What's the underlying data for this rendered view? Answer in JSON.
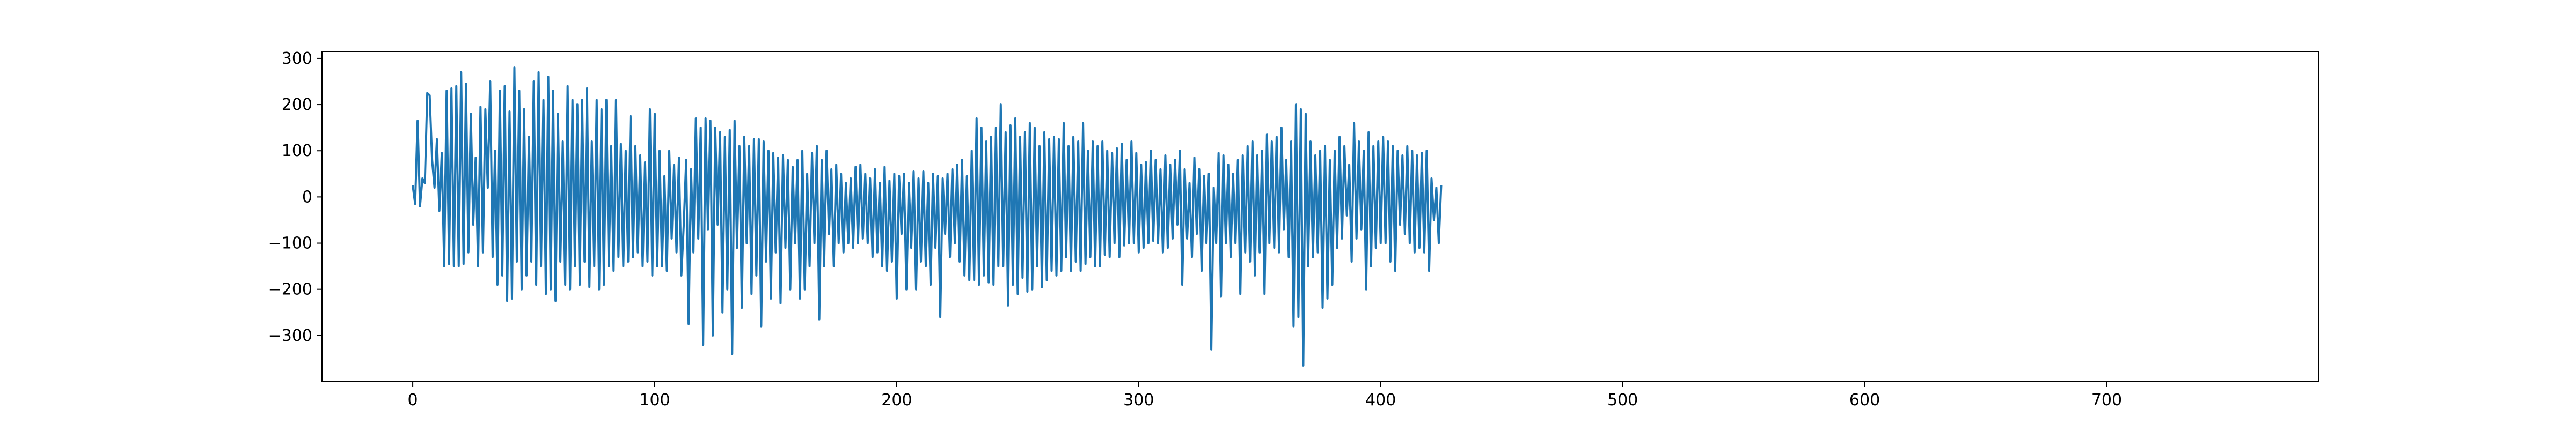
{
  "chart_data": {
    "type": "line",
    "title": "",
    "xlabel": "",
    "ylabel": "",
    "xlim": [
      -37.5,
      787.5
    ],
    "ylim": [
      -400,
      315
    ],
    "xticks": [
      0,
      100,
      200,
      300,
      400,
      500,
      600,
      700
    ],
    "yticks": [
      -300,
      -200,
      -100,
      0,
      100,
      200,
      300
    ],
    "xtick_labels": [
      "0",
      "100",
      "200",
      "300",
      "400",
      "500",
      "600",
      "700"
    ],
    "ytick_labels": [
      "−300",
      "−200",
      "−100",
      "0",
      "100",
      "200",
      "300"
    ],
    "grid": false,
    "legend": "none",
    "line_color": "#1f77b4",
    "series": [
      {
        "values": [
          25,
          -15,
          165,
          -20,
          40,
          30,
          225,
          220,
          80,
          20,
          125,
          -30,
          95,
          -150,
          230,
          -145,
          235,
          -150,
          240,
          -150,
          270,
          -145,
          245,
          -120,
          180,
          -60,
          85,
          -150,
          195,
          -120,
          190,
          20,
          250,
          -130,
          100,
          -190,
          230,
          -170,
          240,
          -225,
          185,
          -220,
          280,
          -140,
          230,
          -200,
          190,
          -170,
          130,
          -140,
          250,
          -190,
          270,
          -150,
          210,
          -210,
          260,
          -200,
          230,
          -225,
          180,
          -140,
          120,
          -190,
          240,
          -200,
          210,
          -150,
          200,
          -190,
          210,
          -140,
          235,
          -195,
          120,
          -150,
          210,
          -200,
          190,
          -190,
          210,
          -150,
          110,
          -160,
          210,
          -130,
          115,
          -150,
          100,
          -140,
          175,
          -130,
          110,
          -120,
          90,
          -150,
          75,
          -140,
          190,
          -170,
          180,
          -150,
          100,
          -150,
          45,
          -160,
          100,
          -90,
          70,
          -120,
          85,
          -170,
          -60,
          80,
          -275,
          60,
          -120,
          170,
          -90,
          150,
          -320,
          170,
          -70,
          165,
          -300,
          150,
          -60,
          140,
          -250,
          130,
          -200,
          145,
          -340,
          165,
          -110,
          110,
          -240,
          130,
          -100,
          110,
          -210,
          125,
          -170,
          125,
          -280,
          120,
          -140,
          100,
          -220,
          95,
          -120,
          85,
          -230,
          90,
          -110,
          80,
          -200,
          65,
          -100,
          80,
          -220,
          100,
          -200,
          50,
          -150,
          95,
          -100,
          110,
          -265,
          80,
          -150,
          100,
          -80,
          60,
          -150,
          70,
          -100,
          50,
          -120,
          30,
          -100,
          40,
          -110,
          65,
          -100,
          70,
          -90,
          50,
          -100,
          40,
          -130,
          60,
          -120,
          30,
          -150,
          65,
          -160,
          35,
          -140,
          50,
          -220,
          45,
          -80,
          50,
          -200,
          30,
          -110,
          55,
          -200,
          40,
          -140,
          55,
          -150,
          30,
          -190,
          50,
          -110,
          45,
          -260,
          40,
          -80,
          50,
          -130,
          60,
          -100,
          70,
          -140,
          80,
          -170,
          45,
          -180,
          100,
          -180,
          170,
          -190,
          150,
          -170,
          120,
          -185,
          130,
          -190,
          150,
          -150,
          200,
          -150,
          140,
          -235,
          155,
          -190,
          170,
          -210,
          130,
          -175,
          140,
          -205,
          160,
          -200,
          150,
          -150,
          110,
          -195,
          140,
          -180,
          125,
          -160,
          130,
          -170,
          125,
          -160,
          160,
          -130,
          110,
          -160,
          130,
          -140,
          120,
          -160,
          160,
          -145,
          100,
          -130,
          120,
          -150,
          110,
          -150,
          120,
          -125,
          100,
          -130,
          95,
          -100,
          105,
          -130,
          115,
          -105,
          80,
          -100,
          120,
          -100,
          95,
          -120,
          70,
          -110,
          75,
          -100,
          100,
          -95,
          80,
          -100,
          60,
          -120,
          90,
          -110,
          70,
          -90,
          80,
          -60,
          100,
          -190,
          60,
          -90,
          30,
          -130,
          85,
          -80,
          60,
          -160,
          45,
          -100,
          50,
          -330,
          20,
          -100,
          95,
          -215,
          90,
          -100,
          70,
          -130,
          50,
          -100,
          80,
          -210,
          90,
          -120,
          110,
          -140,
          120,
          -170,
          90,
          -120,
          100,
          -210,
          135,
          -100,
          120,
          -110,
          130,
          -120,
          150,
          -70,
          80,
          -130,
          120,
          -280,
          200,
          -260,
          190,
          -365,
          180,
          -150,
          120,
          -130,
          90,
          -120,
          100,
          -240,
          110,
          -220,
          80,
          -190,
          100,
          -110,
          130,
          -90,
          110,
          -40,
          70,
          -140,
          160,
          -90,
          120,
          -70,
          100,
          -200,
          140,
          -150,
          110,
          -110,
          120,
          -100,
          130,
          -100,
          120,
          -140,
          110,
          -160,
          100,
          -60,
          90,
          -80,
          110,
          -100,
          100,
          -120,
          90,
          -110,
          95,
          -120,
          100,
          -160,
          40,
          -50,
          20,
          -100,
          25
        ]
      }
    ]
  }
}
